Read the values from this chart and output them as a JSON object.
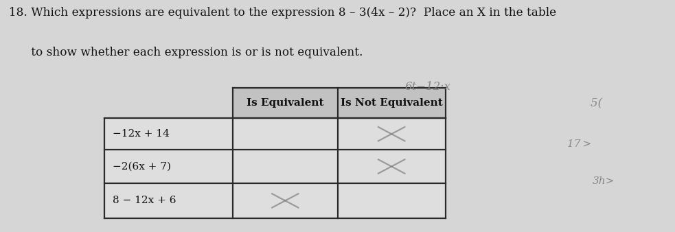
{
  "line1": "18. Which expressions are equivalent to the expression 8 – 3(4x – 2)?  Place an X in the table",
  "line2": "      to show whether each expression is or is not equivalent.",
  "col_headers": [
    "Is Equivalent",
    "Is Not Equivalent"
  ],
  "rows": [
    "−12x + 14",
    "−2(6x + 7)",
    "8 − 12x + 6"
  ],
  "marks": [
    [
      "",
      "X"
    ],
    [
      "",
      "X"
    ],
    [
      "X",
      ""
    ]
  ],
  "handwritten_note": "6t−12·x",
  "hw_right1": "5( ",
  "hw_right2": "17 >",
  "hw_right3": "3h>",
  "bg_color": "#d6d6d6",
  "header_bg": "#c2c2c2",
  "cell_bg": "#dedede",
  "border_color": "#2a2a2a",
  "text_color": "#111111",
  "handwritten_color": "#888888",
  "mark_color": "#777777"
}
